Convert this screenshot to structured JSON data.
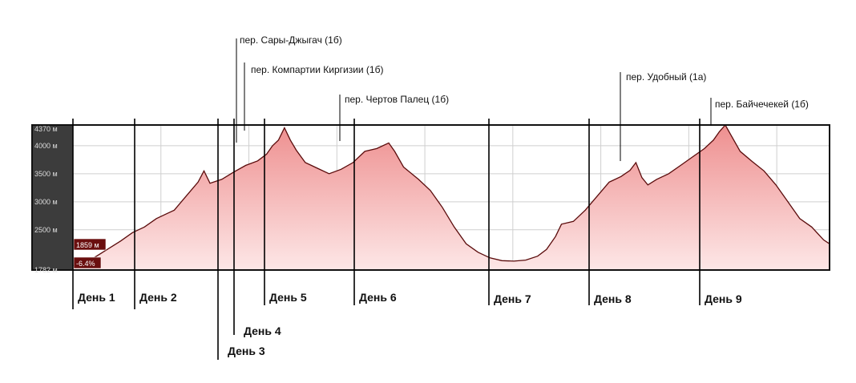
{
  "chart_data": {
    "type": "area",
    "title": "",
    "xlabel": "",
    "ylabel": "",
    "ylim": [
      1782,
      4370
    ],
    "y_ticks": [
      "4370 м",
      "4000 м",
      "3500 м",
      "3000 м",
      "2500 м",
      "1782 м"
    ],
    "y_tick_values": [
      4370,
      4000,
      3500,
      3000,
      2500,
      1782
    ],
    "cursor_readout": {
      "altitude": "1859 м",
      "grade": "-6.4%"
    },
    "colors": {
      "fill_top": "#ee8f8f",
      "fill_bottom": "#fde7e7",
      "line": "#5a0b0b",
      "frame": "#111111",
      "panel": "#3c3c3c",
      "badge": "#6a0f0f"
    },
    "profile": [
      [
        0,
        1859
      ],
      [
        2,
        1900
      ],
      [
        5,
        2100
      ],
      [
        8,
        2300
      ],
      [
        10,
        2450
      ],
      [
        12,
        2550
      ],
      [
        14,
        2700
      ],
      [
        16,
        2800
      ],
      [
        17,
        2850
      ],
      [
        19,
        3100
      ],
      [
        21,
        3350
      ],
      [
        22,
        3550
      ],
      [
        23,
        3330
      ],
      [
        25,
        3400
      ],
      [
        27,
        3530
      ],
      [
        29,
        3650
      ],
      [
        31,
        3730
      ],
      [
        32.5,
        3850
      ],
      [
        33.5,
        4000
      ],
      [
        34.5,
        4100
      ],
      [
        35.5,
        4320
      ],
      [
        36.5,
        4100
      ],
      [
        37.5,
        3920
      ],
      [
        39,
        3700
      ],
      [
        41,
        3600
      ],
      [
        43,
        3500
      ],
      [
        45,
        3580
      ],
      [
        47,
        3700
      ],
      [
        49,
        3900
      ],
      [
        51,
        3950
      ],
      [
        53,
        4050
      ],
      [
        54,
        3900
      ],
      [
        55.5,
        3620
      ],
      [
        58,
        3400
      ],
      [
        60,
        3200
      ],
      [
        62,
        2900
      ],
      [
        64,
        2550
      ],
      [
        66,
        2250
      ],
      [
        68,
        2100
      ],
      [
        70,
        2000
      ],
      [
        72,
        1950
      ],
      [
        74,
        1940
      ],
      [
        76,
        1960
      ],
      [
        78,
        2030
      ],
      [
        79.5,
        2150
      ],
      [
        81,
        2380
      ],
      [
        82,
        2600
      ],
      [
        84,
        2650
      ],
      [
        86,
        2850
      ],
      [
        88,
        3100
      ],
      [
        90,
        3350
      ],
      [
        92,
        3450
      ],
      [
        93.5,
        3560
      ],
      [
        94.5,
        3700
      ],
      [
        95.5,
        3430
      ],
      [
        96.5,
        3300
      ],
      [
        98,
        3400
      ],
      [
        100,
        3500
      ],
      [
        102,
        3650
      ],
      [
        104,
        3800
      ],
      [
        106,
        3950
      ],
      [
        107.5,
        4100
      ],
      [
        108.5,
        4250
      ],
      [
        109.5,
        4370
      ],
      [
        110.5,
        4180
      ],
      [
        112,
        3900
      ],
      [
        114,
        3720
      ],
      [
        116,
        3550
      ],
      [
        118,
        3300
      ],
      [
        120,
        3000
      ],
      [
        122,
        2700
      ],
      [
        124,
        2550
      ],
      [
        126,
        2320
      ],
      [
        127,
        2250
      ]
    ],
    "passes": [
      {
        "label": "пер. Сары-Джыгач (1б)",
        "x": 35.5
      },
      {
        "label": "пер. Компартии Киргизии (1б)",
        "x": 35.5
      },
      {
        "label": "пер. Чертов Палец (1б)",
        "x": 53
      },
      {
        "label": "пер. Удобный (1а)",
        "x": 94.5
      },
      {
        "label": "пер. Байчечекей (1б)",
        "x": 109.5
      }
    ],
    "days": [
      {
        "label": "День 1",
        "x": 0
      },
      {
        "label": "День 2",
        "x": 17
      },
      {
        "label": "День 3",
        "x": 31.5
      },
      {
        "label": "День 4",
        "x": 34
      },
      {
        "label": "День 5",
        "x": 38
      },
      {
        "label": "День 6",
        "x": 50
      },
      {
        "label": "День 7",
        "x": 73
      },
      {
        "label": "День 8",
        "x": 89.5
      },
      {
        "label": "День 9",
        "x": 108
      }
    ],
    "x_range": [
      0,
      127
    ]
  }
}
